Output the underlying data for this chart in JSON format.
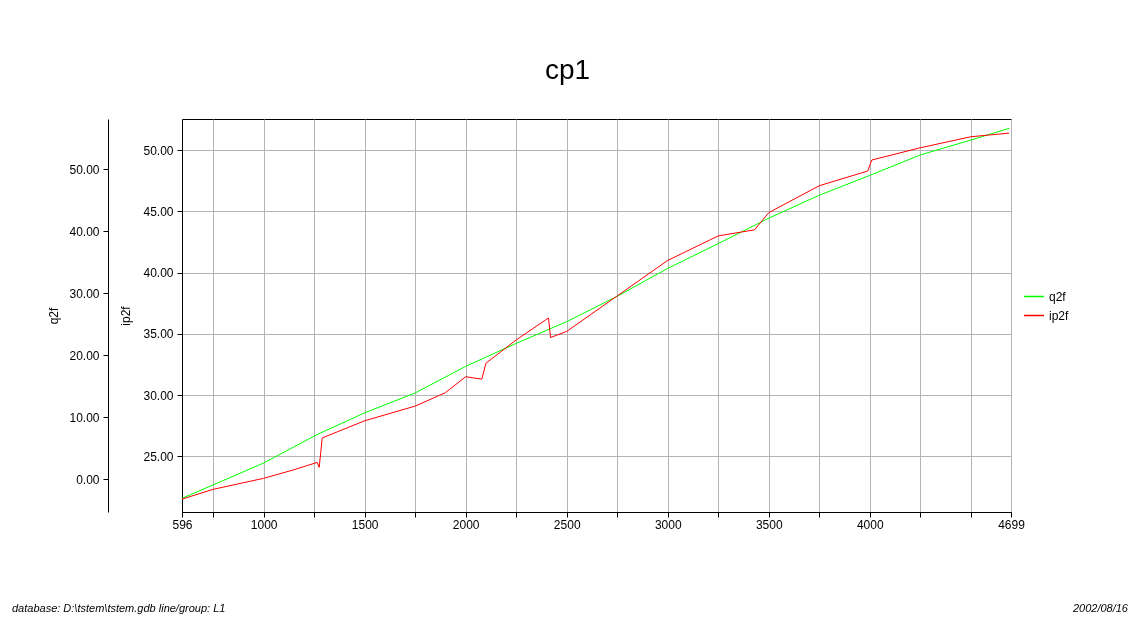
{
  "chart_data": {
    "type": "line",
    "title": "cp1",
    "ylabel": "ip2f",
    "y2label": "q2f",
    "xlim": [
      596,
      4699
    ],
    "xticks": [
      596,
      {
        "value": 750,
        "label": null
      },
      1000,
      {
        "value": 1250,
        "label": null
      },
      1500,
      {
        "value": 1750,
        "label": null
      },
      2000,
      {
        "value": 2250,
        "label": null
      },
      2500,
      {
        "value": 2750,
        "label": null
      },
      3000,
      {
        "value": 3250,
        "label": null
      },
      3500,
      {
        "value": 3750,
        "label": null
      },
      4000,
      {
        "value": 4250,
        "label": null
      },
      {
        "value": 4500,
        "label": null
      },
      4699
    ],
    "ylim": [
      20.45,
      52.55
    ],
    "yticks": [
      {
        "value": 25,
        "label": "25.00"
      },
      {
        "value": 30,
        "label": "30.00"
      },
      {
        "value": 35,
        "label": "35.00"
      },
      {
        "value": 40,
        "label": "40.00"
      },
      {
        "value": 45,
        "label": "45.00"
      },
      {
        "value": 50,
        "label": "50.00"
      }
    ],
    "y2lim": [
      -5.3,
      58.1
    ],
    "y2ticks": [
      {
        "value": 0,
        "label": "0.00"
      },
      {
        "value": 10,
        "label": "10.00"
      },
      {
        "value": 20,
        "label": "20.00"
      },
      {
        "value": 30,
        "label": "30.00"
      },
      {
        "value": 40,
        "label": "40.00"
      },
      {
        "value": 50,
        "label": "50.00"
      }
    ],
    "series": [
      {
        "name": "q2f",
        "color": "#00ff00",
        "axis": "y2",
        "x": [
          596,
          1000,
          1265,
          1500,
          1750,
          2000,
          2250,
          2500,
          2750,
          3000,
          3250,
          3500,
          3750,
          4000,
          4250,
          4500,
          4690
        ],
        "values": [
          -3.1,
          2.6,
          7.2,
          10.7,
          13.9,
          18.2,
          21.9,
          25.4,
          29.5,
          34.0,
          38.0,
          42.1,
          45.8,
          49.0,
          52.3,
          54.7,
          56.6
        ]
      },
      {
        "name": "ip2f",
        "color": "#ff0000",
        "x": [
          596,
          750,
          1000,
          1150,
          1265,
          1275,
          1290,
          1500,
          1750,
          1900,
          2000,
          2080,
          2100,
          2250,
          2410,
          2420,
          2500,
          2750,
          3000,
          3250,
          3430,
          3500,
          3750,
          3990,
          4010,
          4250,
          4500,
          4690
        ],
        "values": [
          21.5,
          22.3,
          23.2,
          23.9,
          24.5,
          24.1,
          26.5,
          27.9,
          29.1,
          30.2,
          31.5,
          31.3,
          32.6,
          34.5,
          36.3,
          34.7,
          35.2,
          38.1,
          41.0,
          43.0,
          43.5,
          44.9,
          47.1,
          48.3,
          49.2,
          50.2,
          51.1,
          51.4
        ]
      }
    ],
    "grid": true,
    "legend": "right",
    "line_style": "solid",
    "marker": "none",
    "annotations": [
      "database: D:\\tstem\\tstem.gdb  line/group: L1",
      "2002/08/16"
    ]
  }
}
